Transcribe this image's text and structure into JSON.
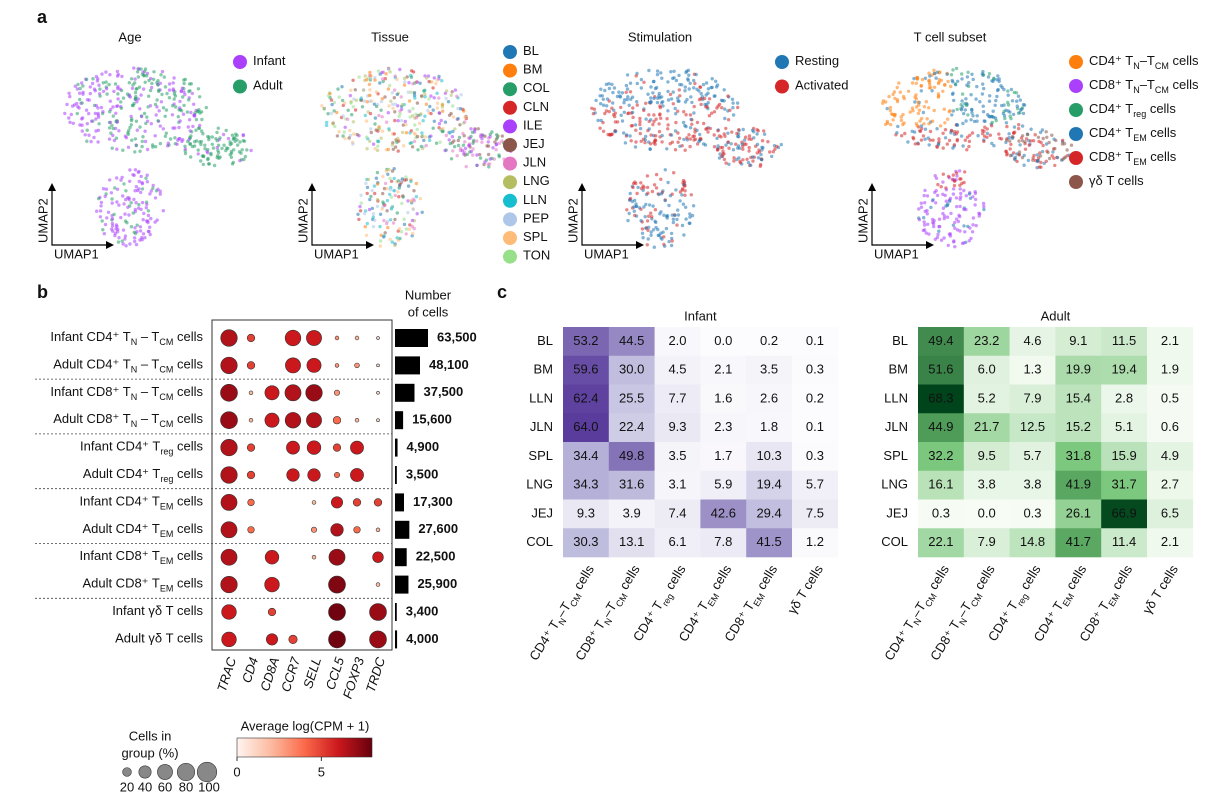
{
  "panel_labels": [
    "a",
    "b",
    "c"
  ],
  "umap": {
    "x_label": "UMAP1",
    "y_label": "UMAP2",
    "panels": [
      {
        "title": "Age",
        "legend": [
          {
            "name": [
              "Infant"
            ],
            "color": "#aa40fc"
          },
          {
            "name": [
              "Adult"
            ],
            "color": "#279e68"
          }
        ]
      },
      {
        "title": "Tissue",
        "legend": [
          {
            "name": [
              "BL"
            ],
            "color": "#1f77b4"
          },
          {
            "name": [
              "BM"
            ],
            "color": "#ff7f0e"
          },
          {
            "name": [
              "COL"
            ],
            "color": "#279e68"
          },
          {
            "name": [
              "CLN"
            ],
            "color": "#d62728"
          },
          {
            "name": [
              "ILE"
            ],
            "color": "#aa40fc"
          },
          {
            "name": [
              "JEJ"
            ],
            "color": "#8c564b"
          },
          {
            "name": [
              "JLN"
            ],
            "color": "#e377c2"
          },
          {
            "name": [
              "LNG"
            ],
            "color": "#b5bd61"
          },
          {
            "name": [
              "LLN"
            ],
            "color": "#17becf"
          },
          {
            "name": [
              "PEP"
            ],
            "color": "#aec7e8"
          },
          {
            "name": [
              "SPL"
            ],
            "color": "#ffbb78"
          },
          {
            "name": [
              "TON"
            ],
            "color": "#98df8a"
          }
        ]
      },
      {
        "title": "Stimulation",
        "legend": [
          {
            "name": [
              "Resting"
            ],
            "color": "#1f77b4"
          },
          {
            "name": [
              "Activated"
            ],
            "color": "#d62728"
          }
        ]
      },
      {
        "title": "T cell subset",
        "legend": [
          {
            "name": [
              "CD4⁺ T",
              "N",
              "–T",
              "CM",
              " cells"
            ],
            "color": "#ff7f0e"
          },
          {
            "name": [
              "CD8⁺ T",
              "N",
              "–T",
              "CM",
              " cells"
            ],
            "color": "#aa40fc"
          },
          {
            "name": [
              "CD4⁺ T",
              "reg",
              " cells"
            ],
            "color": "#279e68"
          },
          {
            "name": [
              "CD4⁺ T",
              "EM",
              " cells"
            ],
            "color": "#1f77b4"
          },
          {
            "name": [
              "CD8⁺ T",
              "EM",
              " cells"
            ],
            "color": "#d62728"
          },
          {
            "name": [
              "γδ T cells"
            ],
            "color": "#8c564b"
          }
        ]
      }
    ]
  },
  "dotplot": {
    "rows": [
      [
        "Infant CD4⁺ T",
        "N",
        " – T",
        "CM",
        " cells"
      ],
      [
        "Adult CD4⁺ T",
        "N",
        " – T",
        "CM",
        " cells"
      ],
      [
        "Infant CD8⁺ T",
        "N",
        " – T",
        "CM",
        " cells"
      ],
      [
        "Adult CD8⁺ T",
        "N",
        " – T",
        "CM",
        " cells"
      ],
      [
        "Infant CD4⁺ T",
        "reg",
        " cells"
      ],
      [
        "Adult CD4⁺ T",
        "reg",
        " cells"
      ],
      [
        "Infant CD4⁺ T",
        "EM",
        " cells"
      ],
      [
        "Adult CD4⁺ T",
        "EM",
        " cells"
      ],
      [
        "Infant CD8⁺ T",
        "EM",
        " cells"
      ],
      [
        "Adult CD8⁺ T",
        "EM",
        " cells"
      ],
      [
        "Infant γδ T cells"
      ],
      [
        "Adult γδ T cells"
      ]
    ],
    "genes": [
      "TRAC",
      "CD4",
      "CD8A",
      "CCR7",
      "SELL",
      "CCL5",
      "FOXP3",
      "TRDC"
    ],
    "pct": [
      [
        95,
        20,
        0,
        85,
        80,
        5,
        5,
        3
      ],
      [
        95,
        20,
        0,
        80,
        70,
        5,
        8,
        3
      ],
      [
        100,
        5,
        70,
        90,
        95,
        10,
        0,
        3
      ],
      [
        100,
        5,
        70,
        85,
        80,
        20,
        5,
        3
      ],
      [
        95,
        20,
        0,
        60,
        65,
        20,
        60,
        0
      ],
      [
        95,
        20,
        0,
        55,
        55,
        10,
        60,
        0
      ],
      [
        90,
        15,
        0,
        0,
        5,
        45,
        20,
        20
      ],
      [
        90,
        15,
        0,
        0,
        10,
        55,
        15,
        5
      ],
      [
        90,
        0,
        65,
        0,
        5,
        90,
        0,
        40
      ],
      [
        95,
        0,
        75,
        0,
        0,
        100,
        0,
        5
      ],
      [
        75,
        0,
        20,
        0,
        0,
        100,
        0,
        100
      ],
      [
        75,
        0,
        45,
        25,
        0,
        100,
        0,
        100
      ]
    ],
    "expr": [
      [
        6.5,
        5,
        0,
        6,
        6,
        3,
        2,
        1
      ],
      [
        6.5,
        5,
        0,
        6,
        6,
        3,
        3,
        1
      ],
      [
        7,
        2,
        6,
        6.5,
        7,
        3,
        0,
        1
      ],
      [
        7,
        2,
        6,
        6.5,
        6.5,
        4,
        2,
        1
      ],
      [
        6.5,
        5,
        0,
        6,
        6,
        5,
        6,
        0
      ],
      [
        6.5,
        5,
        0,
        6,
        6,
        4,
        6,
        0
      ],
      [
        6.5,
        4,
        0,
        0,
        2,
        6,
        5,
        5
      ],
      [
        6.5,
        4,
        0,
        0,
        3,
        6.5,
        4,
        2
      ],
      [
        6.5,
        0,
        6,
        0,
        2,
        7,
        0,
        6
      ],
      [
        6.5,
        0,
        6,
        0,
        0,
        7.5,
        0,
        2
      ],
      [
        6,
        0,
        5,
        0,
        0,
        7.8,
        0,
        7
      ],
      [
        6,
        0,
        6,
        5,
        0,
        7.8,
        0,
        7
      ]
    ],
    "colors": [
      "#fff5f0",
      "#fcbba1",
      "#fb6a4a",
      "#cb181d",
      "#67000d"
    ],
    "size_legend": {
      "title": [
        "Cells in",
        "group (%)"
      ],
      "values": [
        20,
        40,
        60,
        80,
        100
      ]
    },
    "color_legend": {
      "title": "Average log(CPM + 1)",
      "lim": [
        0,
        8
      ],
      "ticks": [
        0,
        5
      ]
    }
  },
  "bars": {
    "title": [
      "Number",
      "of cells"
    ],
    "color": "#000000",
    "values": [
      63500,
      48100,
      37500,
      15600,
      4900,
      3500,
      17300,
      27600,
      22500,
      25900,
      3400,
      4000
    ],
    "value_labels": [
      "63,500",
      "48,100",
      "37,500",
      "15,600",
      "4,900",
      "3,500",
      "17,300",
      "27,600",
      "22,500",
      "25,900",
      "3,400",
      "4,000"
    ]
  },
  "heatmaps": [
    {
      "title": "Infant",
      "colors": [
        "#fcfbfd",
        "#bcb9dc",
        "#5a3c9c"
      ],
      "rows": [
        "BL",
        "BM",
        "LLN",
        "JLN",
        "SPL",
        "LNG",
        "JEJ",
        "COL"
      ],
      "cols": [
        [
          "CD4⁺ T",
          "N",
          "–T",
          "CM",
          " cells"
        ],
        [
          "CD8⁺ T",
          "N",
          "–T",
          "CM",
          " cells"
        ],
        [
          "CD4⁺ T",
          "reg",
          " cells"
        ],
        [
          "CD4⁺ T",
          "EM",
          " cells"
        ],
        [
          "CD8⁺ T",
          "EM",
          " cells"
        ],
        [
          "γδ T cells"
        ]
      ],
      "values": [
        [
          53.2,
          44.5,
          2.0,
          0.0,
          0.2,
          0.1
        ],
        [
          59.6,
          30.0,
          4.5,
          2.1,
          3.5,
          0.3
        ],
        [
          62.4,
          25.5,
          7.7,
          1.6,
          2.6,
          0.2
        ],
        [
          64.0,
          22.4,
          9.3,
          2.3,
          1.8,
          0.1
        ],
        [
          34.4,
          49.8,
          3.5,
          1.7,
          10.3,
          0.3
        ],
        [
          34.3,
          31.6,
          3.1,
          5.9,
          19.4,
          5.7
        ],
        [
          9.3,
          3.9,
          7.4,
          42.6,
          29.4,
          7.5
        ],
        [
          30.3,
          13.1,
          6.1,
          7.8,
          41.5,
          1.2
        ]
      ],
      "value_labels": [
        [
          "53.2",
          "44.5",
          "2.0",
          "0.0",
          "0.2",
          "0.1"
        ],
        [
          "59.6",
          "30.0",
          "4.5",
          "2.1",
          "3.5",
          "0.3"
        ],
        [
          "62.4",
          "25.5",
          "7.7",
          "1.6",
          "2.6",
          "0.2"
        ],
        [
          "64.0",
          "22.4",
          "9.3",
          "2.3",
          "1.8",
          "0.1"
        ],
        [
          "34.4",
          "49.8",
          "3.5",
          "1.7",
          "10.3",
          "0.3"
        ],
        [
          "34.3",
          "31.6",
          "3.1",
          "5.9",
          "19.4",
          "5.7"
        ],
        [
          "9.3",
          "3.9",
          "7.4",
          "42.6",
          "29.4",
          "7.5"
        ],
        [
          "30.3",
          "13.1",
          "6.1",
          "7.8",
          "41.5",
          "1.2"
        ]
      ]
    },
    {
      "title": "Adult",
      "colors": [
        "#f7fcf5",
        "#74c476",
        "#00441b"
      ],
      "rows": [
        "BL",
        "BM",
        "LLN",
        "JLN",
        "SPL",
        "LNG",
        "JEJ",
        "COL"
      ],
      "cols": [
        [
          "CD4⁺ T",
          "N",
          "–T",
          "CM",
          " cells"
        ],
        [
          "CD8⁺ T",
          "N",
          "–T",
          "CM",
          " cells"
        ],
        [
          "CD4⁺ T",
          "reg",
          " cells"
        ],
        [
          "CD4⁺ T",
          "EM",
          " cells"
        ],
        [
          "CD8⁺ T",
          "EM",
          " cells"
        ],
        [
          "γδ T cells"
        ]
      ],
      "values": [
        [
          49.4,
          23.2,
          4.6,
          9.1,
          11.5,
          2.1
        ],
        [
          51.6,
          6.0,
          1.3,
          19.9,
          19.4,
          1.9
        ],
        [
          68.3,
          5.2,
          7.9,
          15.4,
          2.8,
          0.5
        ],
        [
          44.9,
          21.7,
          12.5,
          15.2,
          5.1,
          0.6
        ],
        [
          32.2,
          9.5,
          5.7,
          31.8,
          15.9,
          4.9
        ],
        [
          16.1,
          3.8,
          3.8,
          41.9,
          31.7,
          2.7
        ],
        [
          0.3,
          0.0,
          0.3,
          26.1,
          66.9,
          6.5
        ],
        [
          22.1,
          7.9,
          14.8,
          41.7,
          11.4,
          2.1
        ]
      ],
      "value_labels": [
        [
          "49.4",
          "23.2",
          "4.6",
          "9.1",
          "11.5",
          "2.1"
        ],
        [
          "51.6",
          "6.0",
          "1.3",
          "19.9",
          "19.4",
          "1.9"
        ],
        [
          "68.3",
          "5.2",
          "7.9",
          "15.4",
          "2.8",
          "0.5"
        ],
        [
          "44.9",
          "21.7",
          "12.5",
          "15.2",
          "5.1",
          "0.6"
        ],
        [
          "32.2",
          "9.5",
          "5.7",
          "31.8",
          "15.9",
          "4.9"
        ],
        [
          "16.1",
          "3.8",
          "3.8",
          "41.9",
          "31.7",
          "2.7"
        ],
        [
          "0.3",
          "0.0",
          "0.3",
          "26.1",
          "66.9",
          "6.5"
        ],
        [
          "22.1",
          "7.9",
          "14.8",
          "41.7",
          "11.4",
          "2.1"
        ]
      ]
    }
  ]
}
